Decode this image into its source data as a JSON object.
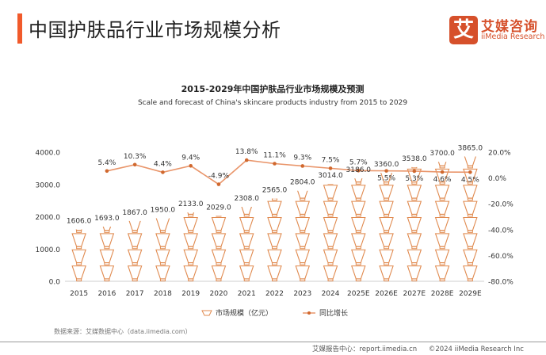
{
  "header": {
    "title": "中国护肤品行业市场规模分析",
    "logo_glyph": "艾",
    "logo_cn": "艾媒咨询",
    "logo_en": "iiMedia Research"
  },
  "chart_data": {
    "type": "bar",
    "subtype": "pictorial-bar-with-line",
    "title": "2015-2029年中国护肤品行业市场规模及预测",
    "subtitle": "Scale and forecast of China's skincare products industry from 2015 to 2029",
    "categories": [
      "2015",
      "2016",
      "2017",
      "2018",
      "2019",
      "2020",
      "2021",
      "2022",
      "2023",
      "2024",
      "2025E",
      "2026E",
      "2027E",
      "2028E",
      "2029E"
    ],
    "series": [
      {
        "name": "市场规模（亿元）",
        "type": "pictorial-bar",
        "axis": "left",
        "unit_per_symbol": 500,
        "values": [
          1606.0,
          1693.0,
          1867.0,
          1950.0,
          2133.0,
          2029.0,
          2308.0,
          2565.0,
          2804.0,
          3014.0,
          3186.0,
          3360.0,
          3538.0,
          3700.0,
          3865.0
        ],
        "labels": [
          "1606.0",
          "1693.0",
          "1867.0",
          "1950.0",
          "2133.0",
          "2029.0",
          "2308.0",
          "2565.0",
          "2804.0",
          "3014.0",
          "3186.0",
          "3360.0",
          "3538.0",
          "3700.0",
          "3865.0"
        ]
      },
      {
        "name": "同比增长",
        "type": "line",
        "axis": "right",
        "values": [
          null,
          5.4,
          10.3,
          4.4,
          9.4,
          -4.9,
          13.8,
          11.1,
          9.3,
          7.5,
          5.7,
          5.5,
          5.3,
          4.6,
          4.5
        ],
        "labels": [
          "",
          "5.4%",
          "10.3%",
          "4.4%",
          "9.4%",
          "-4.9%",
          "13.8%",
          "11.1%",
          "9.3%",
          "7.5%",
          "5.7%",
          "5.5%",
          "5.3%",
          "4.6%",
          "4.5%"
        ]
      }
    ],
    "y_left": {
      "range": [
        0,
        4000
      ],
      "ticks": [
        "0.0",
        "1000.0",
        "2000.0",
        "3000.0",
        "4000.0"
      ]
    },
    "y_right": {
      "range": [
        -80,
        20
      ],
      "ticks": [
        "-80.0%",
        "-60.0%",
        "-40.0%",
        "-20.0%",
        "0.0%",
        "20.0%"
      ]
    },
    "grid": false,
    "legend_position": "bottom-center",
    "colors": {
      "bar": "#e08a4f",
      "line": "#e9956a",
      "marker": "#d0682e",
      "axis": "#cfcfcf",
      "text": "#333333"
    }
  },
  "legend": {
    "bar_label": "市场规模（亿元）",
    "line_label": "同比增长"
  },
  "footer": {
    "source": "数据来源：艾媒数据中心（data.iimedia.com）",
    "report_center": "艾媒报告中心：report.iimedia.cn",
    "copyright": "©2024  iiMedia Research Inc"
  }
}
